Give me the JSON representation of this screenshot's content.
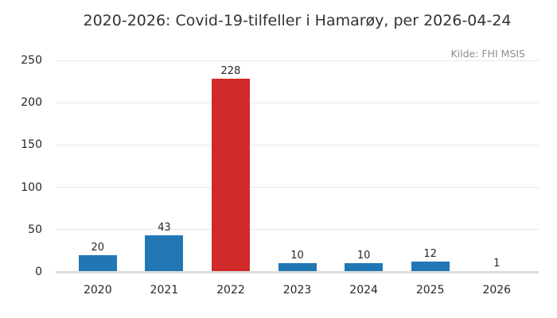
{
  "chart_data": {
    "type": "bar",
    "title": "2020-2026: Covid-19-tilfeller i Hamarøy, per 2026-04-24",
    "source": "Kilde: FHI MSIS",
    "categories": [
      "2020",
      "2021",
      "2022",
      "2023",
      "2024",
      "2025",
      "2026"
    ],
    "values": [
      20,
      43,
      228,
      10,
      10,
      12,
      1
    ],
    "value_labels": [
      "20",
      "43",
      "228",
      "10",
      "10",
      "12",
      "1"
    ],
    "bar_colors": [
      "#2177b4",
      "#2177b4",
      "#d22a2a",
      "#2177b4",
      "#2177b4",
      "#2177b4",
      "#2177b4"
    ],
    "xlabel": "",
    "ylabel": "",
    "ylim": [
      0,
      250
    ],
    "yticks": [
      0,
      50,
      100,
      150,
      200,
      250
    ],
    "grid": "horizontal",
    "legend": "none",
    "colors": {
      "bar_default": "#2177b4",
      "bar_highlight": "#d22a2a",
      "gridline": "#e7e7e7",
      "baseline": "#dcdcdc",
      "title_text": "#333333",
      "tick_text": "#262626",
      "source_text": "#8c8c8c",
      "background": "#ffffff"
    }
  }
}
